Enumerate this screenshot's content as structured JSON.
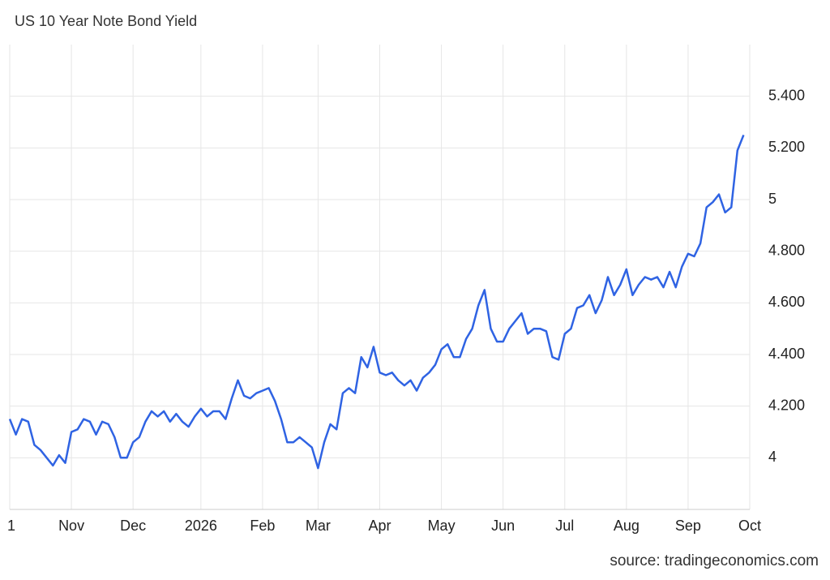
{
  "chart_data": {
    "type": "line",
    "title": "US 10 Year Note Bond Yield",
    "source": "source: tradingeconomics.com",
    "categories": [
      "1",
      null,
      null,
      null,
      null,
      null,
      null,
      null,
      null,
      null,
      "Nov",
      null,
      null,
      null,
      null,
      null,
      null,
      null,
      null,
      null,
      "Dec",
      null,
      null,
      null,
      null,
      null,
      null,
      null,
      null,
      null,
      null,
      "2026",
      null,
      null,
      null,
      null,
      null,
      null,
      null,
      null,
      null,
      "Feb",
      null,
      null,
      null,
      null,
      null,
      null,
      null,
      null,
      "Mar",
      null,
      null,
      null,
      null,
      null,
      null,
      null,
      null,
      null,
      "Apr",
      null,
      null,
      null,
      null,
      null,
      null,
      null,
      null,
      null,
      "May",
      null,
      null,
      null,
      null,
      null,
      null,
      null,
      null,
      null,
      "Jun",
      null,
      null,
      null,
      null,
      null,
      null,
      null,
      null,
      null,
      "Jul",
      null,
      null,
      null,
      null,
      null,
      null,
      null,
      null,
      null,
      "Aug",
      null,
      null,
      null,
      null,
      null,
      null,
      null,
      null,
      null,
      "Sep",
      null,
      null,
      null,
      null,
      null,
      null,
      null,
      null,
      null,
      "Oct"
    ],
    "values": [
      4.15,
      4.09,
      4.15,
      4.14,
      4.05,
      4.03,
      4.0,
      3.97,
      4.01,
      3.98,
      4.1,
      4.11,
      4.15,
      4.14,
      4.09,
      4.14,
      4.13,
      4.08,
      4.0,
      4.0,
      4.06,
      4.08,
      4.14,
      4.18,
      4.16,
      4.18,
      4.14,
      4.17,
      4.14,
      4.12,
      4.16,
      4.19,
      4.16,
      4.18,
      4.18,
      4.15,
      4.23,
      4.3,
      4.24,
      4.23,
      4.25,
      4.26,
      4.27,
      4.22,
      4.15,
      4.06,
      4.06,
      4.08,
      4.06,
      4.04,
      3.96,
      4.06,
      4.13,
      4.11,
      4.25,
      4.27,
      4.25,
      4.39,
      4.35,
      4.43,
      4.33,
      4.32,
      4.33,
      4.3,
      4.28,
      4.3,
      4.26,
      4.31,
      4.33,
      4.36,
      4.42,
      4.44,
      4.39,
      4.39,
      4.46,
      4.5,
      4.59,
      4.65,
      4.5,
      4.45,
      4.45,
      4.5,
      4.53,
      4.56,
      4.48,
      4.5,
      4.5,
      4.49,
      4.39,
      4.38,
      4.48,
      4.5,
      4.58,
      4.59,
      4.63,
      4.56,
      4.61,
      4.7,
      4.63,
      4.67,
      4.73,
      4.63,
      4.67,
      4.7,
      4.69,
      4.7,
      4.66,
      4.72,
      4.66,
      4.74,
      4.79,
      4.78,
      4.83,
      4.97,
      4.99,
      5.02,
      4.95,
      4.97,
      5.19,
      5.25,
      null
    ],
    "color": "#2f63e3",
    "ylim": [
      3.8,
      5.6
    ],
    "yticks": [
      4,
      {
        "value": 4.2,
        "label": "4.200"
      },
      {
        "value": 4.4,
        "label": "4.400"
      },
      {
        "value": 4.6,
        "label": "4.600"
      },
      {
        "value": 4.8,
        "label": "4.800"
      },
      5,
      {
        "value": 5.2,
        "label": "5.200"
      },
      {
        "value": 5.4,
        "label": "5.400"
      }
    ],
    "grid": true
  }
}
